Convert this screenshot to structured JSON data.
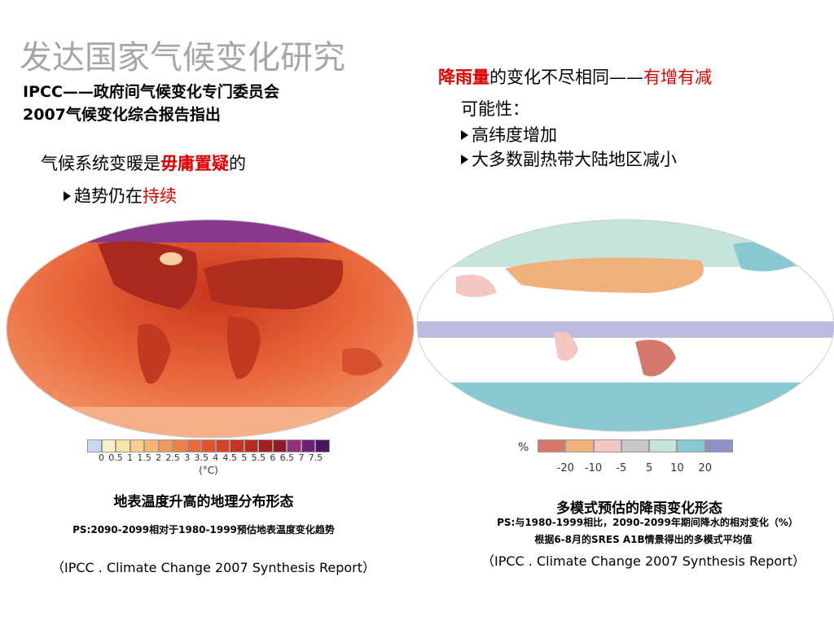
{
  "title": "发达国家气候变化研究",
  "subtitle": [
    "IPCC——政府间气候变化专门委员会",
    "2007气候变化综合报告指出"
  ],
  "left_points": {
    "statement": [
      {
        "text": "气候系统变暖是"
      },
      {
        "text": "毋庸置疑",
        "color": "#e00000",
        "bold": true
      },
      {
        "text": "的"
      }
    ],
    "bullet": [
      {
        "text": "趋势仍在"
      },
      {
        "text": "持续",
        "color": "#e00000"
      }
    ]
  },
  "right_points": {
    "statement": [
      {
        "text": "降雨量",
        "color": "#e00000",
        "bold": true
      },
      {
        "text": "的变化不尽相同——"
      },
      {
        "text": "有增有减",
        "color": "#e00000"
      }
    ],
    "lead": "可能性：",
    "bullets": [
      "高纬度增加",
      "大多数副热带大陆地区减小"
    ]
  },
  "temperature_map": {
    "legend_colors": [
      "#c8d8f0",
      "#f8f0c8",
      "#fbe3a8",
      "#f9cd8a",
      "#f6b470",
      "#f29a5a",
      "#ee8048",
      "#e86a3a",
      "#e0542e",
      "#d64226",
      "#c83420",
      "#b8281c",
      "#a41e1c",
      "#8e1a2a",
      "#92307c",
      "#6e1e78",
      "#4a1460"
    ],
    "legend_ticks": [
      0,
      0.5,
      1,
      1.5,
      2,
      2.5,
      3,
      3.5,
      4,
      4.5,
      5,
      5.5,
      6,
      6.5,
      7,
      7.5
    ],
    "legend_unit": "(°C)",
    "caption": "地表温度升高的地理分布形态",
    "note": "PS:2090-2099相对于1980-1999预估地表温度变化趋势",
    "source": "（IPCC . Climate Change 2007 Synthesis Report）"
  },
  "precipitation_map": {
    "legend_unit": "%",
    "legend_colors": [
      "#d4786c",
      "#f0b07a",
      "#f4c6c4",
      "#c8c8c8",
      "#c6e4dc",
      "#88c8d0",
      "#9090c8"
    ],
    "legend_ticks": [
      -20,
      -10,
      -5,
      5,
      10,
      20
    ],
    "caption": "多模式预估的降雨变化形态",
    "note": [
      "PS:与1980-1999相比，2090-2099年期间降水的相对变化（%）",
      "根据6-8月的SRES A1B情景得出的多模式平均值"
    ],
    "source": "（IPCC . Climate Change 2007 Synthesis Report）"
  }
}
